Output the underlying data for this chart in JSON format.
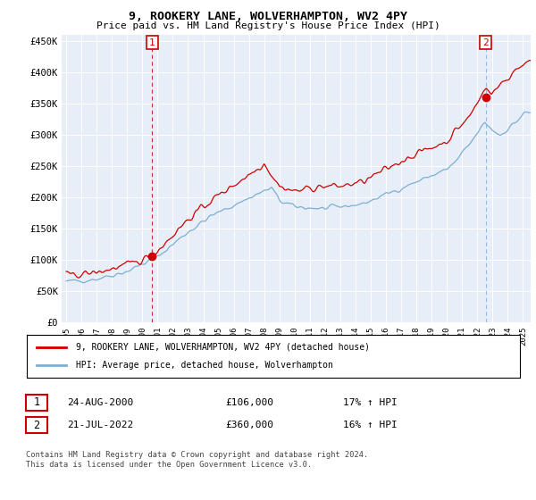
{
  "title": "9, ROOKERY LANE, WOLVERHAMPTON, WV2 4PY",
  "subtitle": "Price paid vs. HM Land Registry's House Price Index (HPI)",
  "ylabel_ticks": [
    "£0",
    "£50K",
    "£100K",
    "£150K",
    "£200K",
    "£250K",
    "£300K",
    "£350K",
    "£400K",
    "£450K"
  ],
  "ytick_values": [
    0,
    50000,
    100000,
    150000,
    200000,
    250000,
    300000,
    350000,
    400000,
    450000
  ],
  "ylim": [
    0,
    460000
  ],
  "xlim_start": 1994.7,
  "xlim_end": 2025.5,
  "line1_color": "#cc0000",
  "line2_color": "#7bafd4",
  "chart_bg": "#e8eef8",
  "background_color": "#ffffff",
  "grid_color": "#ffffff",
  "sale1_x": 2000.646,
  "sale1_y": 106000,
  "sale2_x": 2022.541,
  "sale2_y": 360000,
  "legend_entry1": "9, ROOKERY LANE, WOLVERHAMPTON, WV2 4PY (detached house)",
  "legend_entry2": "HPI: Average price, detached house, Wolverhampton",
  "table_row1": [
    "1",
    "24-AUG-2000",
    "£106,000",
    "17% ↑ HPI"
  ],
  "table_row2": [
    "2",
    "21-JUL-2022",
    "£360,000",
    "16% ↑ HPI"
  ],
  "footer": "Contains HM Land Registry data © Crown copyright and database right 2024.\nThis data is licensed under the Open Government Licence v3.0.",
  "font_family": "monospace"
}
